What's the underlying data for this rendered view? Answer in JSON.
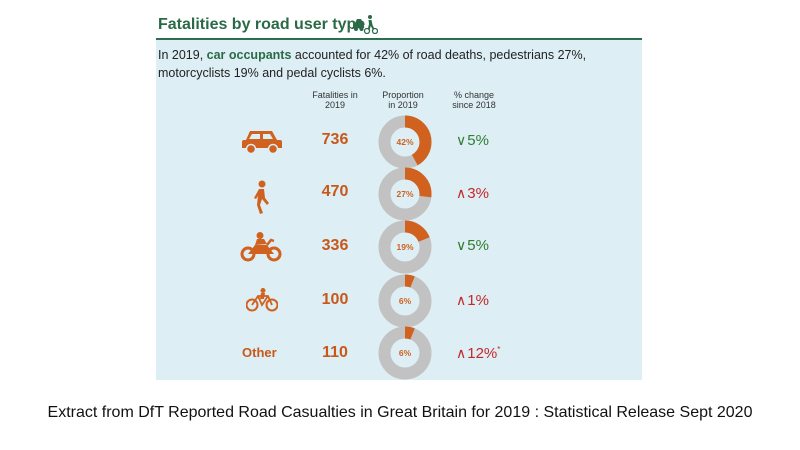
{
  "title": "Fatalities by road user type",
  "summary": {
    "before": "In 2019, ",
    "highlight": "car occupants",
    "after": " accounted for 42% of road deaths, pedestrians 27%, motorcyclists 19% and pedal cyclists 6%."
  },
  "columns": {
    "fatalities": [
      "Fatalities in",
      "2019"
    ],
    "proportion": [
      "Proportion",
      "in 2019"
    ],
    "change": [
      "% change",
      "since 2018"
    ]
  },
  "colors": {
    "accent": "#d0611e",
    "ring": "#c2c2c2",
    "number": "#c8581a",
    "down": "#2e7d32",
    "up": "#c62828",
    "title": "#2b6a47",
    "panel": "#ddeef4"
  },
  "chart_data": {
    "type": "table",
    "rows": [
      {
        "icon": "car-icon",
        "fatalities": "736",
        "proportion": 42,
        "proportion_label": "42%",
        "change_dir": "down",
        "change": "5%",
        "note": ""
      },
      {
        "icon": "pedestrian-icon",
        "fatalities": "470",
        "proportion": 27,
        "proportion_label": "27%",
        "change_dir": "up",
        "change": "3%",
        "note": ""
      },
      {
        "icon": "motorcycle-icon",
        "fatalities": "336",
        "proportion": 19,
        "proportion_label": "19%",
        "change_dir": "down",
        "change": "5%",
        "note": ""
      },
      {
        "icon": "bicycle-icon",
        "fatalities": "100",
        "proportion": 6,
        "proportion_label": "6%",
        "change_dir": "up",
        "change": "1%",
        "note": ""
      },
      {
        "icon": "",
        "label": "Other",
        "fatalities": "110",
        "proportion": 6,
        "proportion_label": "6%",
        "change_dir": "up",
        "change": "12%",
        "note": "*"
      }
    ]
  },
  "caption": "Extract from DfT Reported Road Casualties in Great Britain for 2019 : Statistical Release Sept 2020"
}
